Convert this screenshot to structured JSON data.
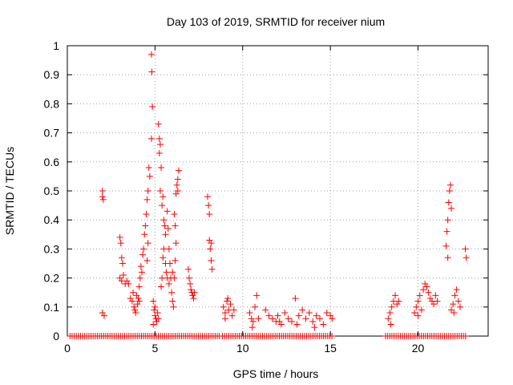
{
  "chart_data": {
    "type": "scatter",
    "title": "Day 103 of 2019, SRMTID for receiver nium",
    "xlabel": "GPS time / hours",
    "ylabel": "SRMTID / TECUs",
    "xlim": [
      0,
      24
    ],
    "ylim": [
      0,
      1
    ],
    "x_ticks": [
      0,
      5,
      10,
      15,
      20
    ],
    "x_tick_labels": [
      "0",
      "5",
      "10",
      "15",
      "20"
    ],
    "y_ticks": [
      0,
      0.1,
      0.2,
      0.3,
      0.4,
      0.5,
      0.6,
      0.7,
      0.8,
      0.9,
      1
    ],
    "y_tick_labels": [
      "0",
      "0.1",
      "0.2",
      "0.3",
      "0.4",
      "0.5",
      "0.6",
      "0.7",
      "0.8",
      "0.9",
      "1"
    ],
    "grid": true,
    "marker": "plus",
    "color": "#ff0000",
    "series": [
      {
        "name": "SRMTID",
        "points": [
          [
            2.0,
            0.5
          ],
          [
            2.0,
            0.48
          ],
          [
            2.05,
            0.47
          ],
          [
            2.0,
            0.08
          ],
          [
            2.1,
            0.07
          ],
          [
            3.0,
            0.34
          ],
          [
            3.05,
            0.32
          ],
          [
            3.1,
            0.27
          ],
          [
            3.15,
            0.25
          ],
          [
            3.0,
            0.2
          ],
          [
            3.1,
            0.19
          ],
          [
            3.2,
            0.21
          ],
          [
            3.3,
            0.18
          ],
          [
            3.4,
            0.19
          ],
          [
            3.5,
            0.18
          ],
          [
            3.6,
            0.13
          ],
          [
            3.7,
            0.12
          ],
          [
            3.75,
            0.15
          ],
          [
            3.8,
            0.1
          ],
          [
            3.85,
            0.09
          ],
          [
            3.9,
            0.08
          ],
          [
            4.0,
            0.11
          ],
          [
            4.05,
            0.13
          ],
          [
            4.1,
            0.12
          ],
          [
            3.95,
            0.14
          ],
          [
            4.1,
            0.17
          ],
          [
            4.15,
            0.2
          ],
          [
            4.2,
            0.24
          ],
          [
            4.25,
            0.22
          ],
          [
            4.3,
            0.28
          ],
          [
            4.35,
            0.3
          ],
          [
            4.4,
            0.35
          ],
          [
            4.45,
            0.38
          ],
          [
            4.5,
            0.42
          ],
          [
            4.55,
            0.47
          ],
          [
            4.6,
            0.5
          ],
          [
            4.65,
            0.58
          ],
          [
            4.7,
            0.55
          ],
          [
            4.6,
            0.32
          ],
          [
            4.55,
            0.26
          ],
          [
            4.8,
            0.97
          ],
          [
            4.82,
            0.91
          ],
          [
            4.85,
            0.79
          ],
          [
            4.8,
            0.68
          ],
          [
            4.9,
            0.12
          ],
          [
            4.95,
            0.09
          ],
          [
            5.0,
            0.07
          ],
          [
            5.05,
            0.06
          ],
          [
            5.1,
            0.05
          ],
          [
            5.0,
            0.1
          ],
          [
            4.9,
            0.04
          ],
          [
            5.15,
            0.08
          ],
          [
            5.2,
            0.06
          ],
          [
            5.2,
            0.73
          ],
          [
            5.25,
            0.68
          ],
          [
            5.3,
            0.66
          ],
          [
            5.25,
            0.63
          ],
          [
            5.35,
            0.58
          ],
          [
            5.3,
            0.5
          ],
          [
            5.4,
            0.45
          ],
          [
            5.45,
            0.48
          ],
          [
            5.5,
            0.4
          ],
          [
            5.55,
            0.38
          ],
          [
            5.6,
            0.35
          ],
          [
            5.5,
            0.3
          ],
          [
            5.45,
            0.27
          ],
          [
            5.6,
            0.25
          ],
          [
            5.65,
            0.22
          ],
          [
            5.7,
            0.2
          ],
          [
            5.4,
            0.2
          ],
          [
            5.35,
            0.17
          ],
          [
            5.7,
            0.43
          ],
          [
            5.75,
            0.37
          ],
          [
            5.8,
            0.3
          ],
          [
            5.85,
            0.25
          ],
          [
            5.9,
            0.2
          ],
          [
            5.95,
            0.15
          ],
          [
            6.0,
            0.12
          ],
          [
            6.05,
            0.1
          ],
          [
            5.8,
            0.18
          ],
          [
            6.0,
            0.22
          ],
          [
            6.1,
            0.42
          ],
          [
            6.15,
            0.38
          ],
          [
            6.2,
            0.32
          ],
          [
            6.15,
            0.26
          ],
          [
            6.1,
            0.2
          ],
          [
            6.2,
            0.49
          ],
          [
            6.25,
            0.52
          ],
          [
            6.3,
            0.54
          ],
          [
            6.35,
            0.57
          ],
          [
            6.3,
            0.5
          ],
          [
            6.9,
            0.23
          ],
          [
            6.95,
            0.2
          ],
          [
            7.0,
            0.18
          ],
          [
            7.05,
            0.16
          ],
          [
            7.1,
            0.15
          ],
          [
            7.15,
            0.14
          ],
          [
            7.2,
            0.13
          ],
          [
            7.25,
            0.15
          ],
          [
            8.0,
            0.48
          ],
          [
            8.05,
            0.45
          ],
          [
            8.1,
            0.42
          ],
          [
            8.1,
            0.33
          ],
          [
            8.15,
            0.3
          ],
          [
            8.2,
            0.26
          ],
          [
            8.25,
            0.23
          ],
          [
            8.2,
            0.32
          ],
          [
            8.9,
            0.1
          ],
          [
            9.0,
            0.08
          ],
          [
            9.1,
            0.12
          ],
          [
            9.2,
            0.09
          ],
          [
            9.3,
            0.11
          ],
          [
            9.4,
            0.07
          ],
          [
            9.5,
            0.09
          ],
          [
            9.0,
            0.06
          ],
          [
            9.15,
            0.13
          ],
          [
            10.4,
            0.08
          ],
          [
            10.5,
            0.06
          ],
          [
            10.6,
            0.05
          ],
          [
            10.7,
            0.1
          ],
          [
            10.8,
            0.14
          ],
          [
            10.9,
            0.06
          ],
          [
            10.55,
            0.03
          ],
          [
            11.3,
            0.09
          ],
          [
            11.5,
            0.07
          ],
          [
            11.7,
            0.06
          ],
          [
            11.9,
            0.05
          ],
          [
            12.0,
            0.07
          ],
          [
            12.2,
            0.04
          ],
          [
            12.4,
            0.08
          ],
          [
            12.6,
            0.06
          ],
          [
            12.8,
            0.05
          ],
          [
            13.0,
            0.13
          ],
          [
            13.2,
            0.07
          ],
          [
            13.4,
            0.09
          ],
          [
            13.6,
            0.06
          ],
          [
            13.8,
            0.08
          ],
          [
            14.0,
            0.05
          ],
          [
            14.2,
            0.07
          ],
          [
            14.4,
            0.06
          ],
          [
            14.6,
            0.04
          ],
          [
            14.8,
            0.08
          ],
          [
            15.0,
            0.07
          ],
          [
            15.1,
            0.06
          ],
          [
            12.1,
            0.05
          ],
          [
            13.1,
            0.04
          ],
          [
            14.1,
            0.03
          ],
          [
            18.3,
            0.06
          ],
          [
            18.4,
            0.08
          ],
          [
            18.5,
            0.1
          ],
          [
            18.6,
            0.12
          ],
          [
            18.7,
            0.14
          ],
          [
            18.8,
            0.11
          ],
          [
            18.9,
            0.12
          ],
          [
            18.45,
            0.04
          ],
          [
            19.8,
            0.08
          ],
          [
            19.9,
            0.1
          ],
          [
            20.0,
            0.12
          ],
          [
            20.1,
            0.14
          ],
          [
            20.2,
            0.09
          ],
          [
            20.3,
            0.16
          ],
          [
            20.4,
            0.18
          ],
          [
            20.5,
            0.17
          ],
          [
            20.6,
            0.15
          ],
          [
            20.7,
            0.13
          ],
          [
            20.8,
            0.12
          ],
          [
            20.9,
            0.11
          ],
          [
            21.0,
            0.14
          ],
          [
            21.1,
            0.12
          ],
          [
            20.0,
            0.07
          ],
          [
            21.6,
            0.31
          ],
          [
            21.65,
            0.36
          ],
          [
            21.7,
            0.4
          ],
          [
            21.75,
            0.46
          ],
          [
            21.8,
            0.5
          ],
          [
            21.85,
            0.52
          ],
          [
            21.9,
            0.44
          ],
          [
            21.7,
            0.27
          ],
          [
            21.9,
            0.09
          ],
          [
            22.0,
            0.11
          ],
          [
            22.1,
            0.14
          ],
          [
            22.2,
            0.16
          ],
          [
            22.3,
            0.12
          ],
          [
            22.4,
            0.1
          ],
          [
            22.05,
            0.08
          ],
          [
            22.7,
            0.3
          ],
          [
            22.75,
            0.27
          ]
        ]
      }
    ],
    "zero_segments": [
      [
        0.15,
        8.75
      ],
      [
        8.85,
        15.2
      ],
      [
        18.15,
        22.8
      ]
    ]
  }
}
